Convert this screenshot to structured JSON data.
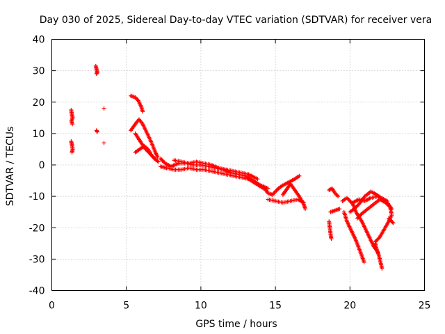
{
  "chart_data": {
    "type": "scatter",
    "title": "Day 030 of 2025, Sidereal Day-to-day VTEC variation (SDTVAR) for receiver vera",
    "xlabel": "GPS time / hours",
    "ylabel": "SDTVAR / TECUs",
    "xlim": [
      0,
      25
    ],
    "ylim": [
      -40,
      40
    ],
    "xticks": [
      0,
      5,
      10,
      15,
      20,
      25
    ],
    "yticks": [
      -40,
      -30,
      -20,
      -10,
      0,
      10,
      20,
      30,
      40
    ],
    "xtick_labels": [
      "0",
      "5",
      "10",
      "15",
      "20",
      "25"
    ],
    "ytick_labels": [
      "-40",
      "-30",
      "-20",
      "-10",
      "0",
      "10",
      "20",
      "30",
      "40"
    ],
    "grid": true,
    "marker": "+",
    "color": "#ff0000",
    "series": [
      {
        "name": "SDTVAR",
        "segments": [
          [
            [
              1.3,
              17.5
            ],
            [
              1.35,
              16
            ],
            [
              1.4,
              15
            ],
            [
              1.32,
              14
            ],
            [
              1.38,
              13
            ]
          ],
          [
            [
              1.3,
              7.5
            ],
            [
              1.35,
              6.5
            ],
            [
              1.4,
              5
            ],
            [
              1.35,
              4
            ]
          ],
          [
            [
              2.95,
              31.5
            ],
            [
              3.0,
              30.5
            ],
            [
              3.05,
              29.5
            ],
            [
              3.0,
              29
            ]
          ],
          [
            [
              3.0,
              11
            ],
            [
              3.05,
              10.5
            ]
          ],
          [
            [
              3.5,
              18
            ]
          ],
          [
            [
              3.5,
              7
            ]
          ],
          [
            [
              5.3,
              22
            ],
            [
              5.6,
              21.5
            ],
            [
              5.8,
              20.5
            ],
            [
              6.0,
              18.5
            ],
            [
              6.1,
              17
            ]
          ],
          [
            [
              5.3,
              11
            ],
            [
              5.6,
              13
            ],
            [
              5.85,
              14.5
            ],
            [
              6.1,
              13
            ],
            [
              6.4,
              10
            ],
            [
              6.7,
              7
            ],
            [
              6.95,
              4
            ],
            [
              7.1,
              2.5
            ]
          ],
          [
            [
              5.6,
              10
            ],
            [
              5.8,
              8.5
            ],
            [
              6.0,
              7
            ],
            [
              6.3,
              5
            ],
            [
              6.6,
              3.5
            ],
            [
              6.9,
              2
            ],
            [
              7.15,
              1
            ]
          ],
          [
            [
              5.6,
              4
            ],
            [
              5.9,
              5
            ],
            [
              6.2,
              6
            ],
            [
              6.45,
              5
            ],
            [
              6.7,
              3
            ],
            [
              7.0,
              1.5
            ]
          ],
          [
            [
              7.3,
              2
            ],
            [
              7.6,
              0.5
            ],
            [
              8.0,
              -0.5
            ],
            [
              8.5,
              0.5
            ],
            [
              9.0,
              0.5
            ],
            [
              9.5,
              0
            ],
            [
              10.0,
              0
            ],
            [
              10.5,
              -0.5
            ],
            [
              11.0,
              -1
            ],
            [
              11.5,
              -1.5
            ],
            [
              12.0,
              -2.5
            ],
            [
              12.5,
              -3
            ],
            [
              13.0,
              -3.5
            ],
            [
              13.5,
              -5
            ],
            [
              14.0,
              -6.5
            ],
            [
              14.5,
              -7.5
            ]
          ],
          [
            [
              7.3,
              -0.5
            ],
            [
              7.7,
              -1
            ],
            [
              8.2,
              -1.5
            ],
            [
              8.7,
              -1.5
            ],
            [
              9.2,
              -1
            ],
            [
              9.7,
              -1.5
            ],
            [
              10.2,
              -1.5
            ],
            [
              10.7,
              -2
            ],
            [
              11.2,
              -2.5
            ],
            [
              11.7,
              -3
            ],
            [
              12.2,
              -3.5
            ],
            [
              12.7,
              -4
            ],
            [
              13.2,
              -4.5
            ],
            [
              13.7,
              -6
            ],
            [
              14.2,
              -7.5
            ]
          ],
          [
            [
              8.2,
              1.5
            ],
            [
              8.7,
              1
            ],
            [
              9.2,
              0.5
            ],
            [
              9.7,
              1
            ],
            [
              10.2,
              0.5
            ],
            [
              10.7,
              0
            ],
            [
              11.2,
              -1
            ],
            [
              11.7,
              -1.5
            ],
            [
              12.2,
              -2
            ],
            [
              12.7,
              -2.5
            ],
            [
              13.2,
              -3
            ],
            [
              13.8,
              -4.5
            ]
          ],
          [
            [
              14.2,
              -7
            ],
            [
              14.5,
              -9
            ],
            [
              14.8,
              -9.5
            ],
            [
              15.2,
              -7.5
            ],
            [
              15.5,
              -6.5
            ],
            [
              15.9,
              -5.5
            ],
            [
              16.3,
              -4.5
            ],
            [
              16.6,
              -3.5
            ]
          ],
          [
            [
              14.5,
              -11
            ],
            [
              15.0,
              -11.5
            ],
            [
              15.5,
              -12
            ],
            [
              16.0,
              -11.5
            ],
            [
              16.5,
              -11
            ],
            [
              16.9,
              -12
            ]
          ],
          [
            [
              15.5,
              -9.5
            ],
            [
              15.8,
              -7.5
            ],
            [
              16.0,
              -6
            ],
            [
              16.3,
              -8
            ],
            [
              16.6,
              -10
            ],
            [
              16.9,
              -12.5
            ],
            [
              17.0,
              -14
            ]
          ],
          [
            [
              18.6,
              -8
            ],
            [
              18.8,
              -7.5
            ],
            [
              19.0,
              -9
            ],
            [
              19.2,
              -10
            ]
          ],
          [
            [
              18.7,
              -15
            ],
            [
              19.0,
              -14.5
            ],
            [
              19.3,
              -14
            ]
          ],
          [
            [
              18.6,
              -18
            ],
            [
              18.65,
              -20
            ],
            [
              18.7,
              -22
            ],
            [
              18.75,
              -23.5
            ]
          ],
          [
            [
              19.5,
              -11.5
            ],
            [
              19.8,
              -10.5
            ],
            [
              20.2,
              -12.5
            ],
            [
              20.4,
              -15
            ],
            [
              20.8,
              -18
            ],
            [
              21.2,
              -22
            ],
            [
              21.6,
              -26
            ],
            [
              21.9,
              -28
            ]
          ],
          [
            [
              19.6,
              -15
            ],
            [
              19.8,
              -18
            ],
            [
              20.0,
              -20
            ],
            [
              20.2,
              -22
            ],
            [
              20.4,
              -24
            ],
            [
              20.6,
              -26.5
            ],
            [
              20.8,
              -29
            ],
            [
              20.95,
              -31
            ]
          ],
          [
            [
              20.0,
              -15
            ],
            [
              20.3,
              -14
            ],
            [
              20.6,
              -12.5
            ],
            [
              21.0,
              -10
            ],
            [
              21.4,
              -8.5
            ],
            [
              21.8,
              -9.5
            ],
            [
              22.2,
              -11
            ],
            [
              22.5,
              -12
            ],
            [
              22.8,
              -14
            ]
          ],
          [
            [
              20.5,
              -17
            ],
            [
              20.8,
              -15.5
            ],
            [
              21.2,
              -14
            ],
            [
              21.6,
              -12.5
            ],
            [
              22.0,
              -11
            ],
            [
              22.4,
              -12
            ],
            [
              22.7,
              -13.5
            ],
            [
              22.8,
              -16
            ],
            [
              22.6,
              -18
            ],
            [
              22.3,
              -20.5
            ],
            [
              22.0,
              -23
            ],
            [
              21.7,
              -24.5
            ]
          ],
          [
            [
              21.7,
              -25
            ],
            [
              21.8,
              -27
            ],
            [
              21.95,
              -29
            ],
            [
              22.05,
              -31
            ],
            [
              22.15,
              -33
            ]
          ],
          [
            [
              20.2,
              -12
            ],
            [
              20.6,
              -11
            ],
            [
              21.0,
              -11.5
            ],
            [
              21.4,
              -10.5
            ],
            [
              21.9,
              -10
            ],
            [
              22.5,
              -11.5
            ]
          ],
          [
            [
              22.6,
              -17
            ],
            [
              22.8,
              -18
            ],
            [
              22.9,
              -18.5
            ]
          ]
        ]
      }
    ]
  }
}
